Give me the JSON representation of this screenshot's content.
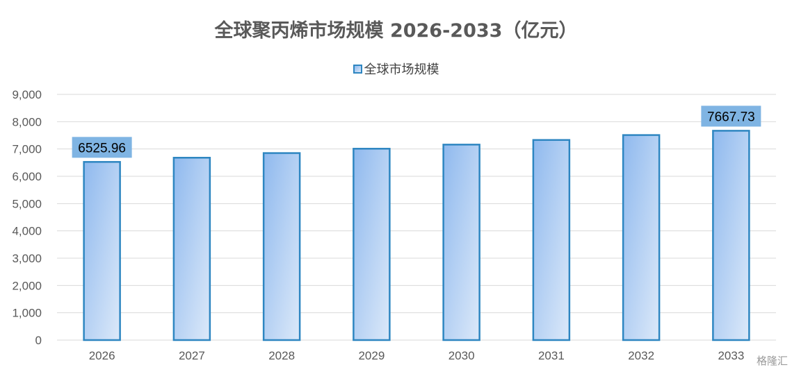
{
  "chart_data": {
    "type": "bar",
    "title": "全球聚丙烯市场规模 2026-2033（亿元）",
    "categories": [
      "2026",
      "2027",
      "2028",
      "2029",
      "2030",
      "2031",
      "2032",
      "2033"
    ],
    "series": [
      {
        "name": "全球市场规模",
        "values": [
          6525.96,
          6680,
          6850,
          7010,
          7160,
          7330,
          7510,
          7667.73
        ]
      }
    ],
    "data_labels": [
      {
        "category": "2026",
        "text": "6525.96"
      },
      {
        "category": "2033",
        "text": "7667.73"
      }
    ],
    "ylim": [
      0,
      9000
    ],
    "yticks": [
      "0",
      "1,000",
      "2,000",
      "3,000",
      "4,000",
      "5,000",
      "6,000",
      "7,000",
      "8,000",
      "9,000"
    ],
    "grid": true,
    "legend_position": "top",
    "colors": {
      "bar_top": "#8fb9ee",
      "bar_bottom": "#dce9f9",
      "bar_border": "#2e86c1",
      "label_bg": "#7fb4e3",
      "grid": "#d9d9d9"
    }
  },
  "watermark": "格隆汇"
}
